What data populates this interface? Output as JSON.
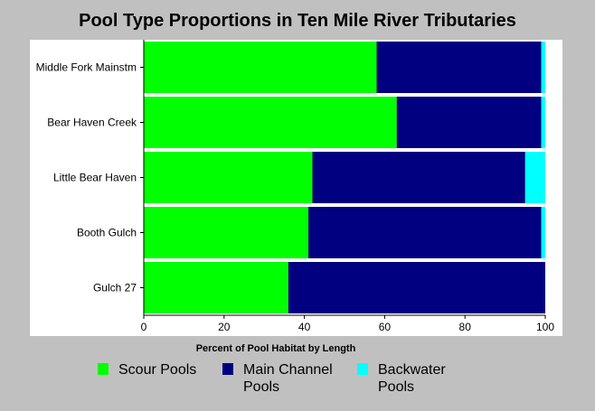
{
  "chart_data": {
    "type": "bar",
    "orientation": "horizontal",
    "stacked": true,
    "title": "Pool Type Proportions in Ten Mile River Tributaries",
    "xlabel": "Percent of Pool Habitat by Length",
    "ylabel": "",
    "xlim": [
      0,
      100
    ],
    "x_ticks": [
      0,
      20,
      40,
      60,
      80,
      100
    ],
    "grid": false,
    "legend_position": "bottom",
    "categories": [
      "Middle Fork Mainstm",
      "Bear Haven Creek",
      "Little Bear Haven",
      "Booth Gulch",
      "Gulch 27"
    ],
    "series": [
      {
        "name": "Scour Pools",
        "color": "#00ff00",
        "values": [
          58,
          63,
          42,
          41,
          36
        ]
      },
      {
        "name": "Main Channel Pools",
        "color": "#000080",
        "values": [
          41,
          36,
          53,
          58,
          64
        ]
      },
      {
        "name": "Backwater Pools",
        "color": "#00ffff",
        "values": [
          1,
          1,
          5,
          1,
          0
        ]
      }
    ]
  },
  "legend": [
    {
      "line1": "Scour Pools",
      "line2": "",
      "color": "#00ff00"
    },
    {
      "line1": "Main Channel",
      "line2": "Pools",
      "color": "#000080"
    },
    {
      "line1": "Backwater",
      "line2": "Pools",
      "color": "#00ffff"
    }
  ]
}
